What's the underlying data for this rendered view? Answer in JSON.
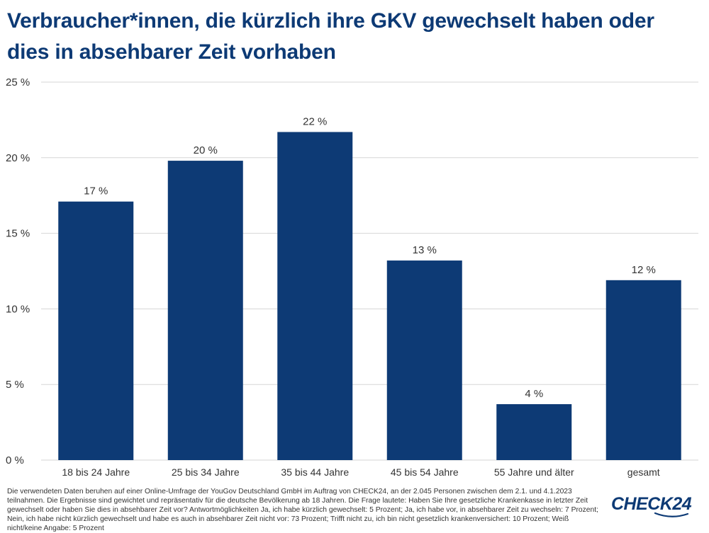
{
  "title": "Verbraucher*innen, die kürzlich ihre GKV gewechselt haben oder dies in absehbarer Zeit vorhaben",
  "footnote": "Die verwendeten Daten beruhen auf einer Online-Umfrage der YouGov Deutschland GmbH im Auftrag von CHECK24, an der 2.045 Personen zwischen dem 2.1. und 4.1.2023 teilnahmen. Die Ergebnisse sind gewichtet und repräsentativ für die deutsche Bevölkerung ab 18 Jahren. Die Frage lautete: Haben Sie Ihre gesetzliche Krankenkasse in letzter Zeit gewechselt oder haben Sie dies in absehbarer Zeit vor? Antwortmöglichkeiten Ja, ich habe kürzlich gewechselt: 5 Prozent; Ja, ich habe vor, in absehbarer Zeit zu wechseln: 7 Prozent; Nein, ich habe nicht kürzlich gewechselt und habe es auch in absehbarer Zeit nicht vor: 73 Prozent; Trifft nicht zu, ich bin nicht gesetzlich krankenversichert: 10 Prozent; Weiß nicht/keine Angabe: 5 Prozent",
  "logo": {
    "text": "CHECK24"
  },
  "colors": {
    "bar": "#0d3a75",
    "title": "#0d3a75",
    "grid": "#d6d6d6"
  },
  "chart_data": {
    "type": "bar",
    "categories": [
      "18 bis 24 Jahre",
      "25 bis 34 Jahre",
      "35 bis 44 Jahre",
      "45 bis 54 Jahre",
      "55 Jahre und älter",
      "gesamt"
    ],
    "values": [
      17.1,
      19.8,
      21.7,
      13.2,
      3.7,
      11.9
    ],
    "data_labels": [
      "17 %",
      "20 %",
      "22 %",
      "13 %",
      "4 %",
      "12 %"
    ],
    "yticks": [
      0,
      5,
      10,
      15,
      20,
      25
    ],
    "ytick_labels": [
      "0 %",
      "5 %",
      "10 %",
      "15 %",
      "20 %",
      "25 %"
    ],
    "ylim": [
      0,
      25
    ],
    "title": "Verbraucher*innen, die kürzlich ihre GKV gewechselt haben oder dies in absehbarer Zeit vorhaben",
    "xlabel": "",
    "ylabel": "",
    "grid": true,
    "legend": "none"
  }
}
